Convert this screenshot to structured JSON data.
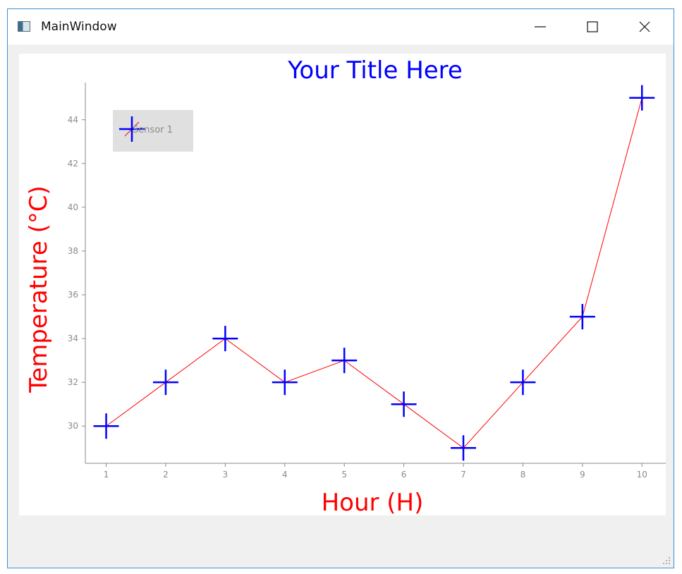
{
  "window": {
    "title": "MainWindow",
    "controls": {
      "minimize": "minimize-icon",
      "maximize": "maximize-icon",
      "close": "close-icon"
    }
  },
  "colors": {
    "title": "#0000ff",
    "axis_labels": "#ff0000",
    "line": "#ff0000",
    "marker": "#0000ff",
    "legend_bg": "#e0e0e0",
    "tick_text": "#8a8a8a"
  },
  "chart_data": {
    "type": "line",
    "title": "Your Title Here",
    "xlabel": "Hour (H)",
    "ylabel": "Temperature (°C)",
    "x": [
      1,
      2,
      3,
      4,
      5,
      6,
      7,
      8,
      9,
      10
    ],
    "xlim": [
      0.65,
      10.4
    ],
    "ylim": [
      28.3,
      45.7
    ],
    "xticks": [
      1,
      2,
      3,
      4,
      5,
      6,
      7,
      8,
      9,
      10
    ],
    "yticks": [
      30,
      32,
      34,
      36,
      38,
      40,
      42,
      44
    ],
    "grid": false,
    "legend_position": "top-left",
    "marker": "+",
    "series": [
      {
        "name": "Sensor 1",
        "values": [
          30,
          32,
          34,
          32,
          33,
          31,
          29,
          32,
          35,
          45
        ]
      }
    ]
  }
}
